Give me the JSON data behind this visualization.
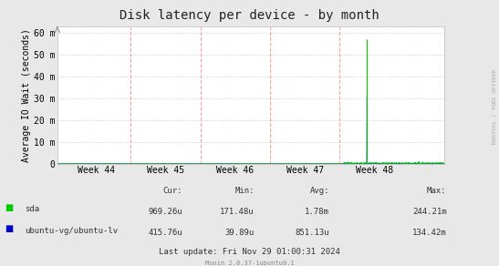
{
  "title": "Disk latency per device - by month",
  "ylabel": "Average IO Wait (seconds)",
  "bg_color": "#e8e8e8",
  "plot_bg_color": "#ffffff",
  "grid_color_h": "#ddaaaa",
  "grid_color_v": "#ff8888",
  "yticks": [
    0,
    10,
    20,
    30,
    40,
    50,
    60
  ],
  "ytick_labels": [
    "0",
    "10 m",
    "20 m",
    "30 m",
    "40 m",
    "50 m",
    "60 m"
  ],
  "ymax": 63,
  "xmin": 0,
  "xmax": 100,
  "week_labels": [
    "Week 44",
    "Week 45",
    "Week 46",
    "Week 47",
    "Week 48"
  ],
  "week_positions": [
    10,
    28,
    46,
    64,
    82
  ],
  "vline_positions": [
    19,
    37,
    55,
    73
  ],
  "sda_color": "#00cc00",
  "lv_color": "#0000cc",
  "stats_cur_sda": "969.26u",
  "stats_min_sda": "171.48u",
  "stats_avg_sda": "1.78m",
  "stats_max_sda": "244.21m",
  "stats_cur_lv": "415.76u",
  "stats_min_lv": "39.89u",
  "stats_avg_lv": "851.13u",
  "stats_max_lv": "134.42m",
  "last_update": "Last update: Fri Nov 29 01:00:31 2024",
  "munin_version": "Munin 2.0.37-1ubuntu0.1",
  "rrdtool_label": "RRDTOOL / TOBI OETIKER",
  "noise_start_x": 74,
  "spike_x": 80,
  "spike_sda": 57,
  "spike_lv": 57,
  "title_fontsize": 10,
  "label_fontsize": 7,
  "stats_fontsize": 6.5,
  "tick_fontsize": 7
}
